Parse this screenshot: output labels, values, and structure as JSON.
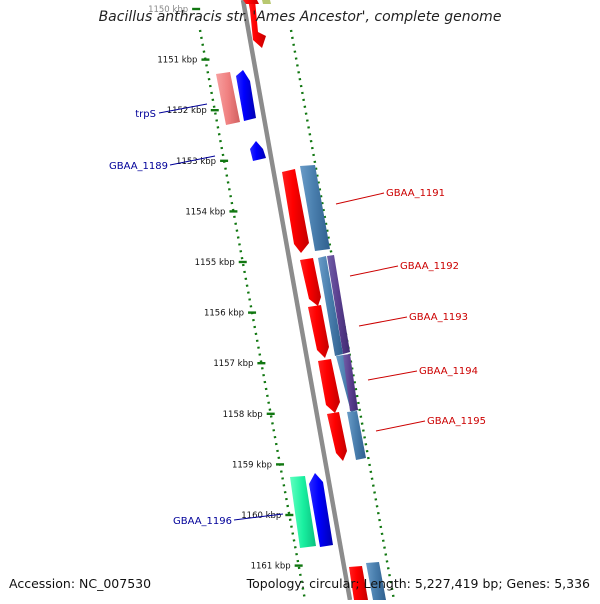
{
  "title": "Bacillus anthracis str. 'Ames Ancestor', complete genome",
  "footer": {
    "accession": "Accession: NC_007530",
    "stats": "Topology: circular; Length: 5,227,419 bp; Genes: 5,336"
  },
  "ruler": [
    "1150 kbp",
    "1151 kbp",
    "1152 kbp",
    "1153 kbp",
    "1154 kbp",
    "1155 kbp",
    "1156 kbp",
    "1157 kbp",
    "1158 kbp",
    "1159 kbp",
    "1160 kbp",
    "1161 kbp"
  ],
  "labels": {
    "left": [
      {
        "text": "trpS",
        "color": "#000099"
      },
      {
        "text": "GBAA_1189",
        "color": "#000099"
      },
      {
        "text": "GBAA_1196",
        "color": "#000099"
      }
    ],
    "right": [
      {
        "text": "GBAA_1191",
        "color": "#cc0000"
      },
      {
        "text": "GBAA_1192",
        "color": "#cc0000"
      },
      {
        "text": "GBAA_1193",
        "color": "#cc0000"
      },
      {
        "text": "GBAA_1194",
        "color": "#cc0000"
      },
      {
        "text": "GBAA_1195",
        "color": "#cc0000"
      }
    ]
  },
  "colors": {
    "backbone": "#8c8c8c",
    "tick": "#117711",
    "gene_red": "#ff0000",
    "gene_blue": "#0000ff",
    "gene_pink": "#f08080",
    "gene_green": "#19f0a0",
    "steel": "#4a7fae",
    "purple": "#5a3e8e"
  }
}
